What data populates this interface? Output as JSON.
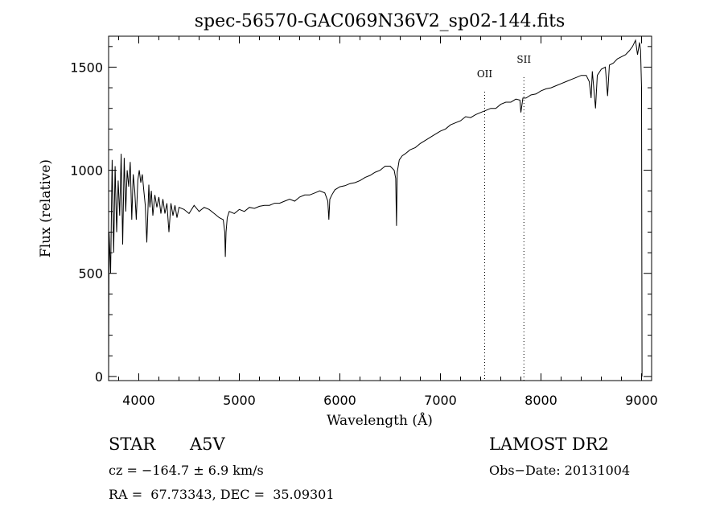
{
  "chart_data": {
    "type": "line",
    "title": "spec-56570-GAC069N36V2_sp02-144.fits",
    "xlabel": "Wavelength (Å)",
    "ylabel": "Flux (relative)",
    "xlim": [
      3700,
      9100
    ],
    "ylim": [
      -20,
      1650
    ],
    "xticks": [
      4000,
      5000,
      6000,
      7000,
      8000,
      9000
    ],
    "yticks": [
      0,
      500,
      1000,
      1500
    ],
    "grid": false,
    "series": [
      {
        "x": [
          3700,
          3705,
          3720,
          3735,
          3750,
          3765,
          3780,
          3795,
          3810,
          3825,
          3840,
          3855,
          3870,
          3885,
          3900,
          3915,
          3930,
          3945,
          3960,
          3975,
          3990,
          4005,
          4020,
          4035,
          4050,
          4065,
          4080,
          4100,
          4110,
          4125,
          4140,
          4160,
          4180,
          4200,
          4220,
          4240,
          4260,
          4280,
          4300,
          4320,
          4340,
          4360,
          4380,
          4400,
          4450,
          4500,
          4550,
          4600,
          4650,
          4700,
          4750,
          4800,
          4840,
          4855,
          4861,
          4868,
          4880,
          4900,
          4950,
          5000,
          5050,
          5100,
          5150,
          5200,
          5250,
          5300,
          5350,
          5400,
          5450,
          5500,
          5550,
          5600,
          5650,
          5700,
          5750,
          5800,
          5850,
          5880,
          5890,
          5900,
          5920,
          5950,
          6000,
          6050,
          6100,
          6150,
          6200,
          6250,
          6300,
          6350,
          6400,
          6450,
          6500,
          6540,
          6555,
          6563,
          6570,
          6590,
          6620,
          6650,
          6700,
          6750,
          6800,
          6850,
          6900,
          6950,
          7000,
          7050,
          7100,
          7150,
          7200,
          7250,
          7300,
          7350,
          7400,
          7450,
          7500,
          7550,
          7600,
          7650,
          7700,
          7750,
          7790,
          7800,
          7820,
          7850,
          7900,
          7950,
          8000,
          8050,
          8100,
          8150,
          8200,
          8250,
          8300,
          8350,
          8400,
          8450,
          8480,
          8498,
          8510,
          8542,
          8560,
          8600,
          8640,
          8662,
          8680,
          8720,
          8760,
          8800,
          8840,
          8880,
          8910,
          8940,
          8960,
          8980,
          8990,
          9000,
          9005
        ],
        "y": [
          0,
          700,
          500,
          1050,
          600,
          1020,
          700,
          950,
          780,
          1080,
          640,
          1060,
          800,
          1000,
          920,
          1040,
          760,
          980,
          900,
          760,
          950,
          1000,
          940,
          980,
          900,
          830,
          650,
          930,
          820,
          900,
          780,
          880,
          820,
          870,
          790,
          860,
          790,
          840,
          700,
          840,
          780,
          830,
          770,
          820,
          810,
          790,
          830,
          800,
          820,
          810,
          790,
          770,
          760,
          700,
          580,
          700,
          770,
          800,
          790,
          810,
          800,
          820,
          815,
          825,
          830,
          830,
          840,
          840,
          850,
          860,
          850,
          870,
          880,
          880,
          890,
          900,
          890,
          850,
          760,
          860,
          880,
          905,
          920,
          925,
          935,
          940,
          950,
          965,
          975,
          990,
          1000,
          1020,
          1020,
          1000,
          960,
          730,
          990,
          1050,
          1070,
          1080,
          1100,
          1110,
          1130,
          1145,
          1160,
          1175,
          1190,
          1200,
          1220,
          1230,
          1240,
          1260,
          1255,
          1270,
          1280,
          1290,
          1300,
          1300,
          1320,
          1330,
          1330,
          1345,
          1340,
          1280,
          1350,
          1350,
          1365,
          1370,
          1385,
          1395,
          1400,
          1410,
          1420,
          1430,
          1440,
          1450,
          1460,
          1460,
          1430,
          1350,
          1480,
          1300,
          1460,
          1490,
          1500,
          1360,
          1510,
          1520,
          1540,
          1550,
          1560,
          1580,
          1600,
          1630,
          1560,
          1620,
          1580,
          1400,
          0
        ]
      }
    ],
    "line_markers": [
      {
        "label": "OII",
        "x": 7440
      },
      {
        "label": "SII",
        "x": 7830
      }
    ]
  },
  "info": {
    "object_type": "STAR",
    "subclass": "A5V",
    "survey": "LAMOST DR2",
    "redshift_line": "cz = −164.7 ± 6.9 km/s",
    "obs_date_line": "Obs−Date: 20131004",
    "coords_line": "RA =  67.73343, DEC =  35.09301"
  }
}
